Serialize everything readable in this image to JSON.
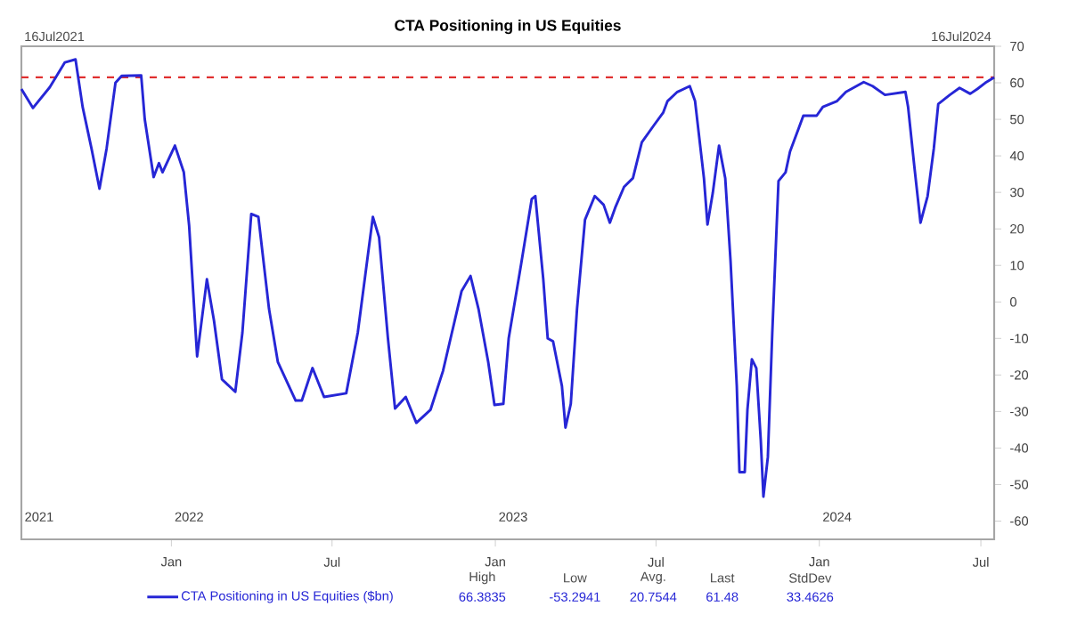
{
  "chart_data": {
    "type": "line",
    "title": "CTA Positioning in US Equities",
    "xlim": [
      "2021-07-16",
      "2024-07-16"
    ],
    "xticks": [
      {
        "value": "2022-01-01",
        "label": "Jan"
      },
      {
        "value": "2022-07-01",
        "label": "Jul"
      },
      {
        "value": "2023-01-01",
        "label": "Jan"
      },
      {
        "value": "2023-07-01",
        "label": "Jul"
      },
      {
        "value": "2024-01-01",
        "label": "Jan"
      },
      {
        "value": "2024-07-01",
        "label": "Jul"
      }
    ],
    "x2lim": [
      "2021-07-16",
      "2024-07-16"
    ],
    "x2ticks": [
      {
        "value": "2021-08-05",
        "label": "2021"
      },
      {
        "value": "2022-01-21",
        "label": "2022"
      },
      {
        "value": "2023-01-21",
        "label": "2023"
      },
      {
        "value": "2024-01-21",
        "label": "2024"
      }
    ],
    "ylim": [
      -65,
      70
    ],
    "yticks": [
      -60,
      -50,
      -40,
      -30,
      -20,
      -10,
      0,
      10,
      20,
      30,
      40,
      50,
      60,
      70
    ],
    "legend": "bottom",
    "ref_lines": [
      {
        "axis": "y",
        "value": 61.5,
        "color": "#e03030",
        "line_style": "dashed"
      }
    ],
    "annotations": [
      "16Jul2021",
      "16Jul2024",
      "High",
      "66.3835",
      "Low",
      "-53.2941",
      "Avg.",
      "20.7544",
      "Last",
      "61.48",
      "StdDev",
      "33.4626"
    ],
    "series": [
      {
        "name": "CTA Positioning in US Equities ($bn)",
        "color": "#2626d6",
        "x": [
          "2021-07-16",
          "2021-07-29",
          "2021-08-17",
          "2021-09-03",
          "2021-09-15",
          "2021-09-23",
          "2021-10-03",
          "2021-10-12",
          "2021-10-20",
          "2021-10-30",
          "2021-11-06",
          "2021-11-28",
          "2021-12-02",
          "2021-12-12",
          "2021-12-18",
          "2021-12-22",
          "2022-01-05",
          "2022-01-15",
          "2022-01-21",
          "2022-01-30",
          "2022-02-10",
          "2022-02-18",
          "2022-02-27",
          "2022-03-14",
          "2022-03-22",
          "2022-04-01",
          "2022-04-09",
          "2022-04-21",
          "2022-05-01",
          "2022-05-21",
          "2022-05-28",
          "2022-06-09",
          "2022-06-22",
          "2022-07-17",
          "2022-07-30",
          "2022-08-16",
          "2022-08-23",
          "2022-09-02",
          "2022-09-10",
          "2022-09-22",
          "2022-10-04",
          "2022-10-20",
          "2022-11-03",
          "2022-11-24",
          "2022-12-04",
          "2022-12-13",
          "2022-12-24",
          "2022-12-31",
          "2023-01-10",
          "2023-01-16",
          "2023-01-30",
          "2023-02-11",
          "2023-02-15",
          "2023-02-24",
          "2023-03-01",
          "2023-03-07",
          "2023-03-17",
          "2023-03-21",
          "2023-03-27",
          "2023-04-03",
          "2023-04-12",
          "2023-04-23",
          "2023-05-03",
          "2023-05-10",
          "2023-05-16",
          "2023-05-26",
          "2023-06-05",
          "2023-06-15",
          "2023-06-29",
          "2023-07-09",
          "2023-07-14",
          "2023-07-25",
          "2023-08-08",
          "2023-08-14",
          "2023-08-24",
          "2023-08-28",
          "2023-09-03",
          "2023-09-10",
          "2023-09-17",
          "2023-09-23",
          "2023-09-30",
          "2023-10-03",
          "2023-10-09",
          "2023-10-12",
          "2023-10-17",
          "2023-10-22",
          "2023-10-27",
          "2023-10-30",
          "2023-11-04",
          "2023-11-09",
          "2023-11-16",
          "2023-11-24",
          "2023-11-29",
          "2023-12-09",
          "2023-12-14",
          "2023-12-29",
          "2024-01-05",
          "2024-01-21",
          "2024-01-31",
          "2024-02-20",
          "2024-03-01",
          "2024-03-15",
          "2024-04-07",
          "2024-04-10",
          "2024-04-17",
          "2024-04-24",
          "2024-05-02",
          "2024-05-09",
          "2024-05-14",
          "2024-05-27",
          "2024-06-07",
          "2024-06-19",
          "2024-06-27",
          "2024-07-06",
          "2024-07-16"
        ],
        "values": [
          58.3,
          53.1,
          58.8,
          65.6,
          66.4,
          53.4,
          42,
          31,
          42,
          60,
          61.9,
          62,
          50,
          34.2,
          38,
          35.5,
          42.8,
          35.5,
          20.9,
          -14.9,
          6.2,
          -5.1,
          -21.2,
          -24.6,
          -8.4,
          24.1,
          23.3,
          -1.9,
          -16.5,
          -27,
          -27,
          -18.1,
          -26,
          -25,
          -8.4,
          23.3,
          17.7,
          -10,
          -29.2,
          -26,
          -33.1,
          -29.5,
          -18.9,
          3,
          7.1,
          -1.9,
          -16.5,
          -28.2,
          -27.9,
          -10,
          10.3,
          28.2,
          29,
          6.2,
          -10,
          -10.8,
          -23,
          -34.4,
          -27.9,
          -1.9,
          22.5,
          29,
          26.6,
          21.7,
          25.8,
          31.5,
          33.9,
          43.7,
          48.5,
          51.8,
          55,
          57.5,
          59.1,
          55,
          33.9,
          21.2,
          29.9,
          42.8,
          33.9,
          11.1,
          -23,
          -46.6,
          -46.6,
          -29.5,
          -15.7,
          -18.1,
          -37.7,
          -53.3,
          -42.5,
          -8.4,
          33.1,
          35.5,
          41.2,
          47.7,
          51,
          51,
          53.4,
          55,
          57.5,
          60.2,
          59.1,
          56.7,
          57.5,
          53.4,
          37.2,
          21.7,
          29,
          42,
          54.2,
          56.7,
          58.6,
          57,
          58.3,
          60,
          61.5
        ]
      }
    ]
  }
}
